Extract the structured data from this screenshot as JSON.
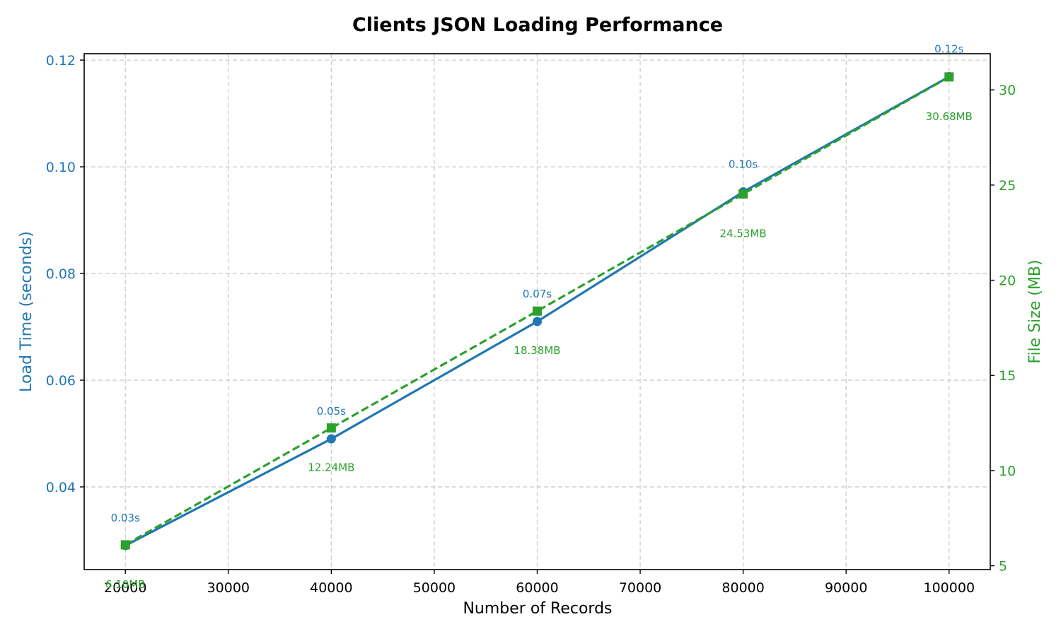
{
  "chart_data": {
    "type": "line",
    "title": "Clients JSON Loading Performance",
    "xlabel": "Number of Records",
    "ylabel_left": "Load Time (seconds)",
    "ylabel_right": "File Size (MB)",
    "x": [
      20000,
      40000,
      60000,
      80000,
      100000
    ],
    "xlim": [
      16000,
      104000
    ],
    "ylim_left": [
      0.0245,
      0.1212
    ],
    "ylim_right": [
      4.8,
      31.9
    ],
    "x_ticks": [
      20000,
      30000,
      40000,
      50000,
      60000,
      70000,
      80000,
      90000,
      100000
    ],
    "y_ticks_left": [
      0.04,
      0.06,
      0.08,
      0.1,
      0.12
    ],
    "y_ticks_left_labels": [
      "0.04",
      "0.06",
      "0.08",
      "0.10",
      "0.12"
    ],
    "y_ticks_right": [
      5,
      10,
      15,
      20,
      25,
      30
    ],
    "grid": true,
    "series": [
      {
        "axis": "left",
        "values": [
          0.029,
          0.049,
          0.071,
          0.0953,
          0.1169
        ],
        "labels": [
          "0.03s",
          "0.05s",
          "0.07s",
          "0.10s",
          "0.12s"
        ],
        "color": "#1f77b4",
        "line_style": "solid",
        "marker": "circle"
      },
      {
        "axis": "right",
        "values": [
          6.1,
          12.24,
          18.38,
          24.53,
          30.68
        ],
        "labels": [
          "6.10MB",
          "12.24MB",
          "18.38MB",
          "24.53MB",
          "30.68MB"
        ],
        "color": "#2ca02c",
        "line_style": "dashed",
        "marker": "square"
      }
    ]
  }
}
